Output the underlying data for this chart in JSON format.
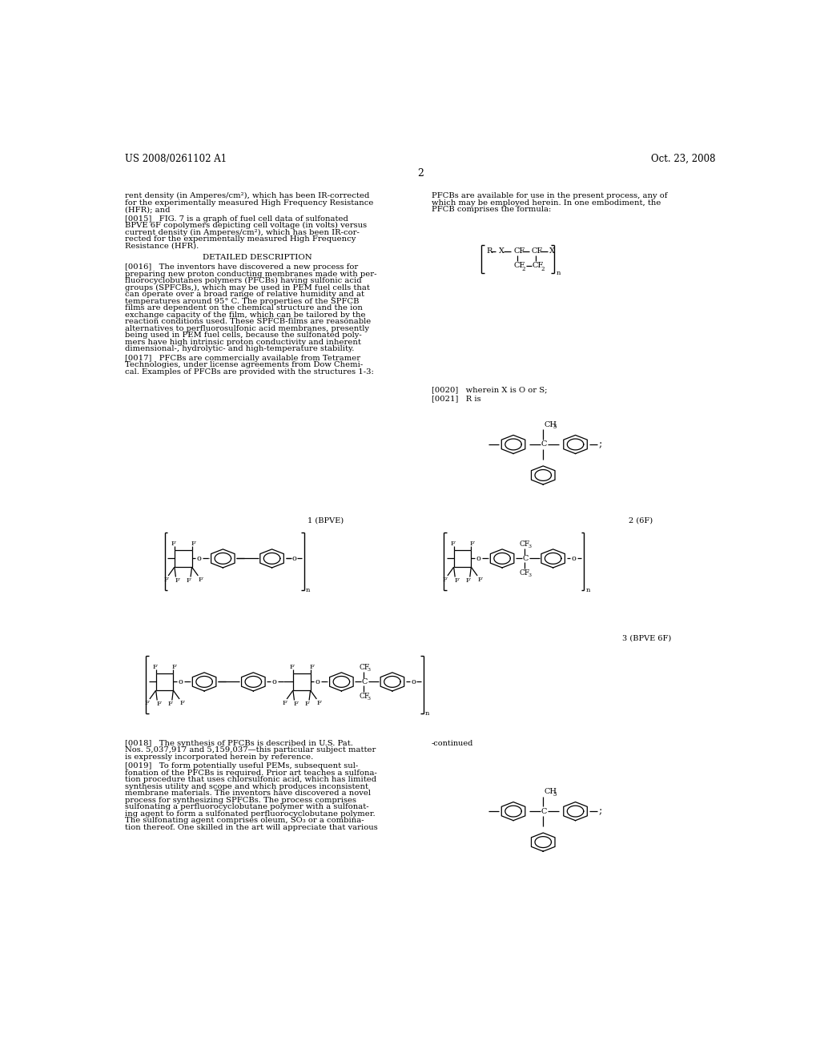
{
  "background_color": "#ffffff",
  "header_left": "US 2008/0261102 A1",
  "header_right": "Oct. 23, 2008",
  "page_number": "2",
  "figsize": [
    10.24,
    13.2
  ],
  "dpi": 100
}
